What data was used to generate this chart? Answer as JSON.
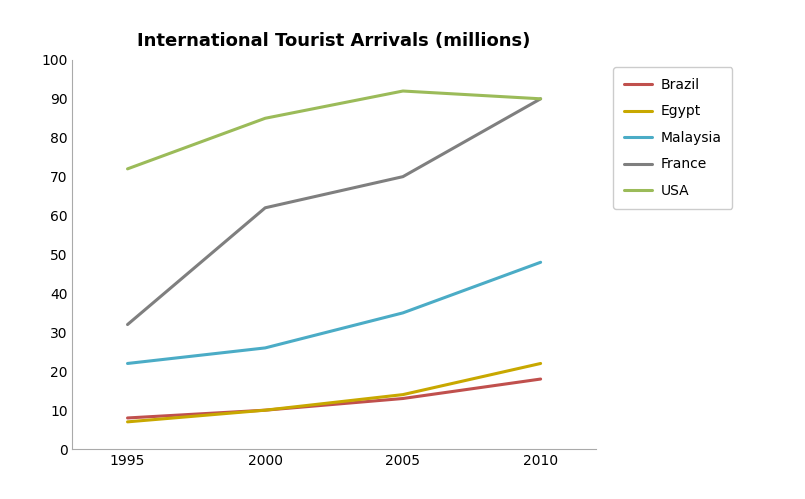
{
  "title": "International Tourist Arrivals (millions)",
  "years": [
    1995,
    2000,
    2005,
    2010
  ],
  "series": [
    {
      "name": "Brazil",
      "color": "#C0504D",
      "values": [
        8,
        10,
        13,
        18
      ]
    },
    {
      "name": "Egypt",
      "color": "#C8A800",
      "values": [
        7,
        10,
        14,
        22
      ]
    },
    {
      "name": "Malaysia",
      "color": "#4BACC6",
      "values": [
        22,
        26,
        35,
        48
      ]
    },
    {
      "name": "France",
      "color": "#7F7F7F",
      "values": [
        32,
        62,
        70,
        90
      ]
    },
    {
      "name": "USA",
      "color": "#9BBB59",
      "values": [
        72,
        85,
        92,
        90
      ]
    }
  ],
  "ylim": [
    0,
    100
  ],
  "yticks": [
    0,
    10,
    20,
    30,
    40,
    50,
    60,
    70,
    80,
    90,
    100
  ],
  "xticks": [
    1995,
    2000,
    2005,
    2010
  ],
  "xlim": [
    1993,
    2012
  ],
  "linewidth": 2.2,
  "title_fontsize": 13,
  "tick_fontsize": 10,
  "legend_fontsize": 10,
  "background_color": "#ffffff"
}
